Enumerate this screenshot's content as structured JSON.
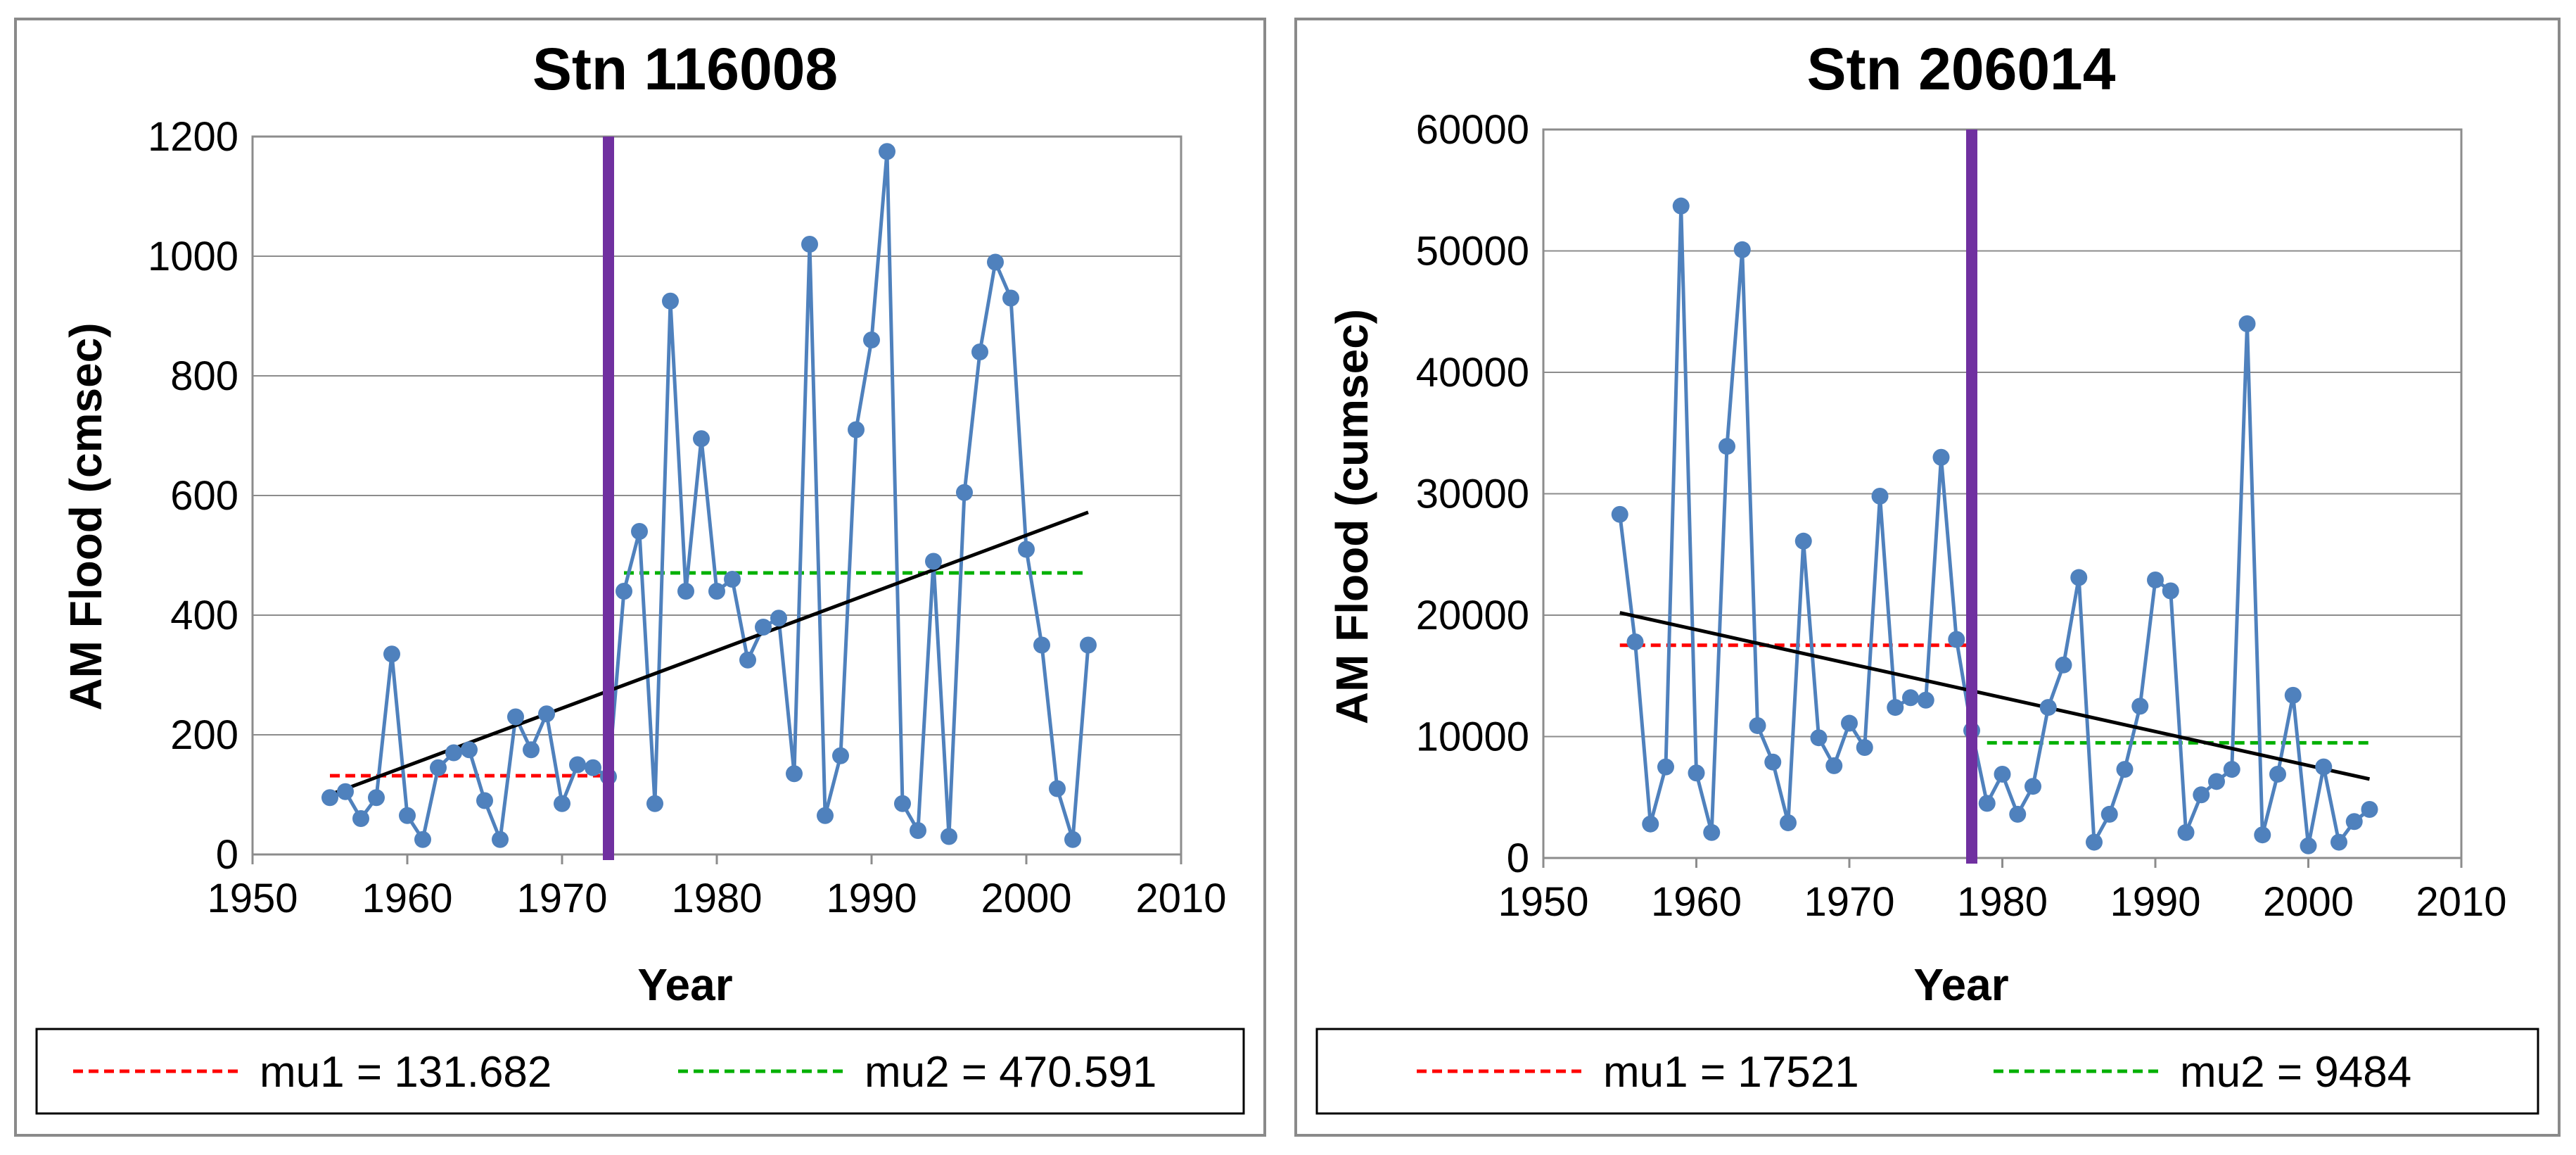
{
  "chart_data": [
    {
      "type": "line",
      "title": "Stn 116008",
      "xlabel": "Year",
      "ylabel": "AM Flood (cmsec)",
      "xlim": [
        1950,
        2010
      ],
      "ylim": [
        0,
        1200
      ],
      "xticks": [
        1950,
        1960,
        1970,
        1980,
        1990,
        2000,
        2010
      ],
      "yticks": [
        0,
        200,
        400,
        600,
        800,
        1000,
        1200
      ],
      "x": [
        1955,
        1956,
        1957,
        1958,
        1959,
        1960,
        1961,
        1962,
        1963,
        1964,
        1965,
        1966,
        1967,
        1968,
        1969,
        1970,
        1971,
        1972,
        1973,
        1974,
        1975,
        1976,
        1977,
        1978,
        1979,
        1980,
        1981,
        1982,
        1983,
        1984,
        1985,
        1986,
        1987,
        1988,
        1989,
        1990,
        1991,
        1992,
        1993,
        1994,
        1995,
        1996,
        1997,
        1998,
        1999,
        2000,
        2001,
        2002,
        2003,
        2004
      ],
      "values": [
        95,
        105,
        60,
        95,
        335,
        65,
        25,
        145,
        170,
        175,
        90,
        25,
        230,
        175,
        235,
        85,
        150,
        145,
        130,
        440,
        540,
        85,
        925,
        440,
        695,
        440,
        460,
        325,
        380,
        395,
        135,
        1020,
        65,
        165,
        710,
        860,
        1175,
        85,
        40,
        490,
        30,
        605,
        840,
        990,
        930,
        510,
        350,
        110,
        25,
        350
      ],
      "change_point": 1973,
      "change_point_color": "#7030a0",
      "series_color": "#4f81bd",
      "trend": {
        "x": [
          1955,
          2004
        ],
        "y": [
          100,
          572
        ],
        "color": "#000000"
      },
      "mu1": {
        "value": 131.682,
        "x_range": [
          1955,
          1973
        ],
        "color": "#ff0000",
        "label": "mu1 = 131.682"
      },
      "mu2": {
        "value": 470.591,
        "x_range": [
          1974,
          2004
        ],
        "color": "#00b000",
        "label": "mu2 = 470.591"
      },
      "legend": [
        "mu1 = 131.682",
        "mu2 = 470.591"
      ]
    },
    {
      "type": "line",
      "title": "Stn 206014",
      "xlabel": "Year",
      "ylabel": "AM Flood (cumsec)",
      "xlim": [
        1950,
        2010
      ],
      "ylim": [
        0,
        60000
      ],
      "xticks": [
        1950,
        1960,
        1970,
        1980,
        1990,
        2000,
        2010
      ],
      "yticks": [
        0,
        10000,
        20000,
        30000,
        40000,
        50000,
        60000
      ],
      "x": [
        1955,
        1956,
        1957,
        1958,
        1959,
        1960,
        1961,
        1962,
        1963,
        1964,
        1965,
        1966,
        1967,
        1968,
        1969,
        1970,
        1971,
        1972,
        1973,
        1974,
        1975,
        1976,
        1977,
        1978,
        1979,
        1980,
        1981,
        1982,
        1983,
        1984,
        1985,
        1986,
        1987,
        1988,
        1989,
        1990,
        1991,
        1992,
        1993,
        1994,
        1995,
        1996,
        1997,
        1998,
        1999,
        2000,
        2001,
        2002,
        2003,
        2004
      ],
      "values": [
        28300,
        17800,
        2800,
        7500,
        53700,
        7000,
        2100,
        33900,
        50100,
        10900,
        7900,
        2900,
        26100,
        9900,
        7600,
        11100,
        9100,
        29800,
        12400,
        13200,
        13000,
        33000,
        18000,
        10500,
        4500,
        6900,
        3600,
        5900,
        12400,
        15900,
        23100,
        1300,
        3600,
        7300,
        12500,
        22900,
        22000,
        2100,
        5200,
        6300,
        7300,
        44000,
        1900,
        6900,
        13400,
        1000,
        7500,
        1300,
        3000,
        4000
      ],
      "change_point": 1978,
      "change_point_color": "#7030a0",
      "series_color": "#4f81bd",
      "trend": {
        "x": [
          1955,
          2004
        ],
        "y": [
          20200,
          6500
        ],
        "color": "#000000"
      },
      "mu1": {
        "value": 17521,
        "x_range": [
          1955,
          1978
        ],
        "color": "#ff0000",
        "label": "mu1 = 17521"
      },
      "mu2": {
        "value": 9484,
        "x_range": [
          1979,
          2004
        ],
        "color": "#00b000",
        "label": "mu2 = 9484"
      },
      "legend": [
        "mu1 = 17521",
        "mu2 = 9484"
      ]
    }
  ]
}
